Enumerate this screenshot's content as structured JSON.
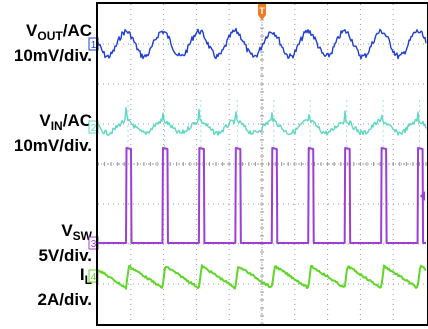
{
  "colors": {
    "vout": "#1f3fd6",
    "vin": "#5fd8c2",
    "vsw": "#9b3fd6",
    "il": "#5fd628",
    "trigger": "#f07a1e",
    "grid": "#9a9a9a",
    "frame": "#000000"
  },
  "scope": {
    "trigger_marker": "T",
    "grid_divisions_x": 10,
    "grid_divisions_y": 8
  },
  "channels": [
    {
      "id": "vout",
      "marker": "1",
      "name_main": "V",
      "name_sub": "OUT",
      "name_tail": "/AC",
      "scale": "10mV/div."
    },
    {
      "id": "vin",
      "marker": "2",
      "name_main": "V",
      "name_sub": "IN",
      "name_tail": "/AC",
      "scale": "10mV/div."
    },
    {
      "id": "vsw",
      "marker": "3",
      "name_main": "V",
      "name_sub": "SW",
      "name_tail": "",
      "scale": "5V/div."
    },
    {
      "id": "il",
      "marker": "4",
      "name_main": "I",
      "name_sub": "L",
      "name_tail": "",
      "scale": "2A/div."
    }
  ],
  "chart_data": {
    "type": "line",
    "grid": true,
    "switching_cycles_on_screen": 9,
    "series": [
      {
        "name": "VOUT/AC",
        "shape": "ripple",
        "amplitude_div": 0.35
      },
      {
        "name": "VIN/AC",
        "shape": "ripple-with-spikes",
        "amplitude_div": 0.25
      },
      {
        "name": "VSW",
        "shape": "pulse",
        "amplitude_div": 2.0
      },
      {
        "name": "IL",
        "shape": "sawtooth",
        "amplitude_div": 0.7
      }
    ]
  }
}
